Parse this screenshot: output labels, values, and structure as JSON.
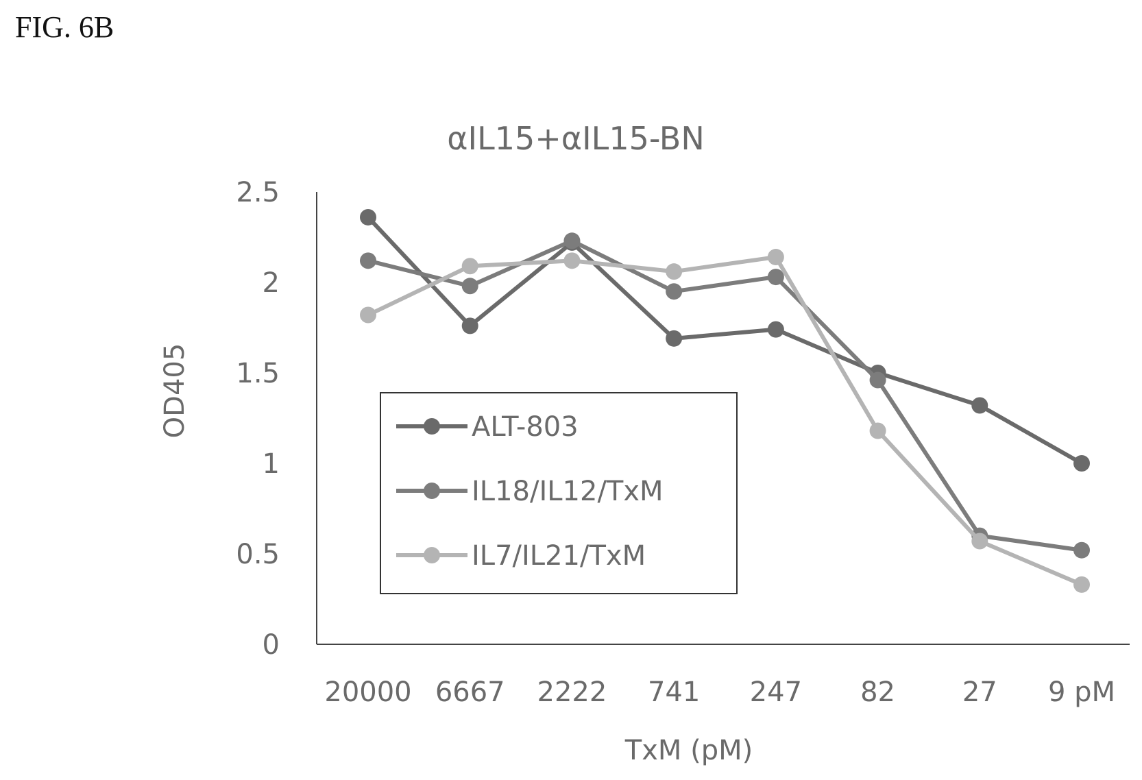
{
  "figure_label": "FIG. 6B",
  "chart_data": {
    "type": "line",
    "title": "αIL15+αIL15-BN",
    "xlabel": "TxM (pM)",
    "ylabel": "OD405",
    "categories": [
      "20000",
      "6667",
      "2222",
      "741",
      "247",
      "82",
      "27",
      "9 pM"
    ],
    "ylim": [
      0,
      2.5
    ],
    "yticks": [
      "0",
      "0.5",
      "1",
      "1.5",
      "2",
      "2.5"
    ],
    "grid": false,
    "legend_position": "center-left",
    "series": [
      {
        "name": "ALT-803",
        "values": [
          2.36,
          1.76,
          2.22,
          1.69,
          1.74,
          1.5,
          1.32,
          1.0
        ],
        "color": "#6a6a6a"
      },
      {
        "name": "IL18/IL12/TxM",
        "values": [
          2.12,
          1.98,
          2.23,
          1.95,
          2.03,
          1.46,
          0.6,
          0.52
        ],
        "color": "#7c7c7c"
      },
      {
        "name": "IL7/IL21/TxM",
        "values": [
          1.82,
          2.09,
          2.12,
          2.06,
          2.14,
          1.18,
          0.57,
          0.33
        ],
        "color": "#b4b4b4"
      }
    ]
  }
}
